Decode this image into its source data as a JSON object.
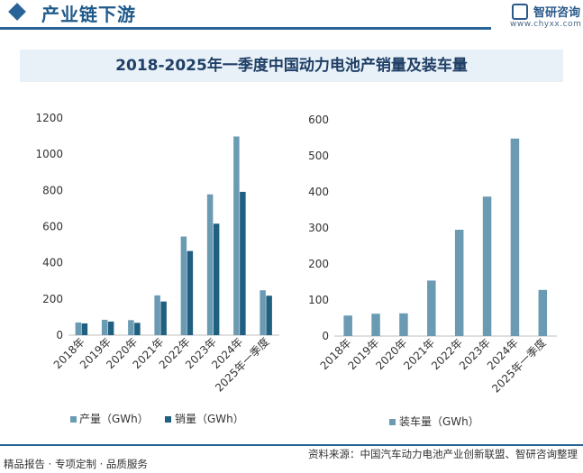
{
  "header": {
    "title": "产业链下游",
    "brand": "智研咨询",
    "url": "www.chyxx.com"
  },
  "colors": {
    "production": "#6a9bb3",
    "sales": "#1f5f80",
    "installed": "#6a9bb3",
    "accent": "#2a6496"
  },
  "chart_data": [
    {
      "type": "bar",
      "title": "2018-2025年一季度中国动力电池产销量及装车量",
      "categories": [
        "2018年",
        "2019年",
        "2020年",
        "2021年",
        "2022年",
        "2023年",
        "2024年",
        "2025年一季度"
      ],
      "series": [
        {
          "name": "产量（GWh）",
          "values": [
            70,
            85,
            83,
            220,
            545,
            778,
            1098,
            248
          ]
        },
        {
          "name": "销量（GWh）",
          "values": [
            65,
            75,
            68,
            186,
            465,
            616,
            792,
            218
          ]
        }
      ],
      "ylim": [
        0,
        1200
      ],
      "yticks": [
        0,
        200,
        400,
        600,
        800,
        1000,
        1200
      ],
      "legend": "bottom",
      "grid": false
    },
    {
      "type": "bar",
      "categories": [
        "2018年",
        "2019年",
        "2020年",
        "2021年",
        "2022年",
        "2023年",
        "2024年",
        "2025年一季度"
      ],
      "series": [
        {
          "name": "装车量（GWh）",
          "values": [
            57,
            62,
            63,
            154,
            295,
            387,
            548,
            128
          ]
        }
      ],
      "ylim": [
        0,
        600
      ],
      "yticks": [
        0,
        100,
        200,
        300,
        400,
        500,
        600
      ],
      "legend": "bottom",
      "grid": false
    }
  ],
  "footer": {
    "source": "资料来源：中国汽车动力电池产业创新联盟、智研咨询整理",
    "tagline": "精品报告 · 专项定制 · 品质服务"
  }
}
